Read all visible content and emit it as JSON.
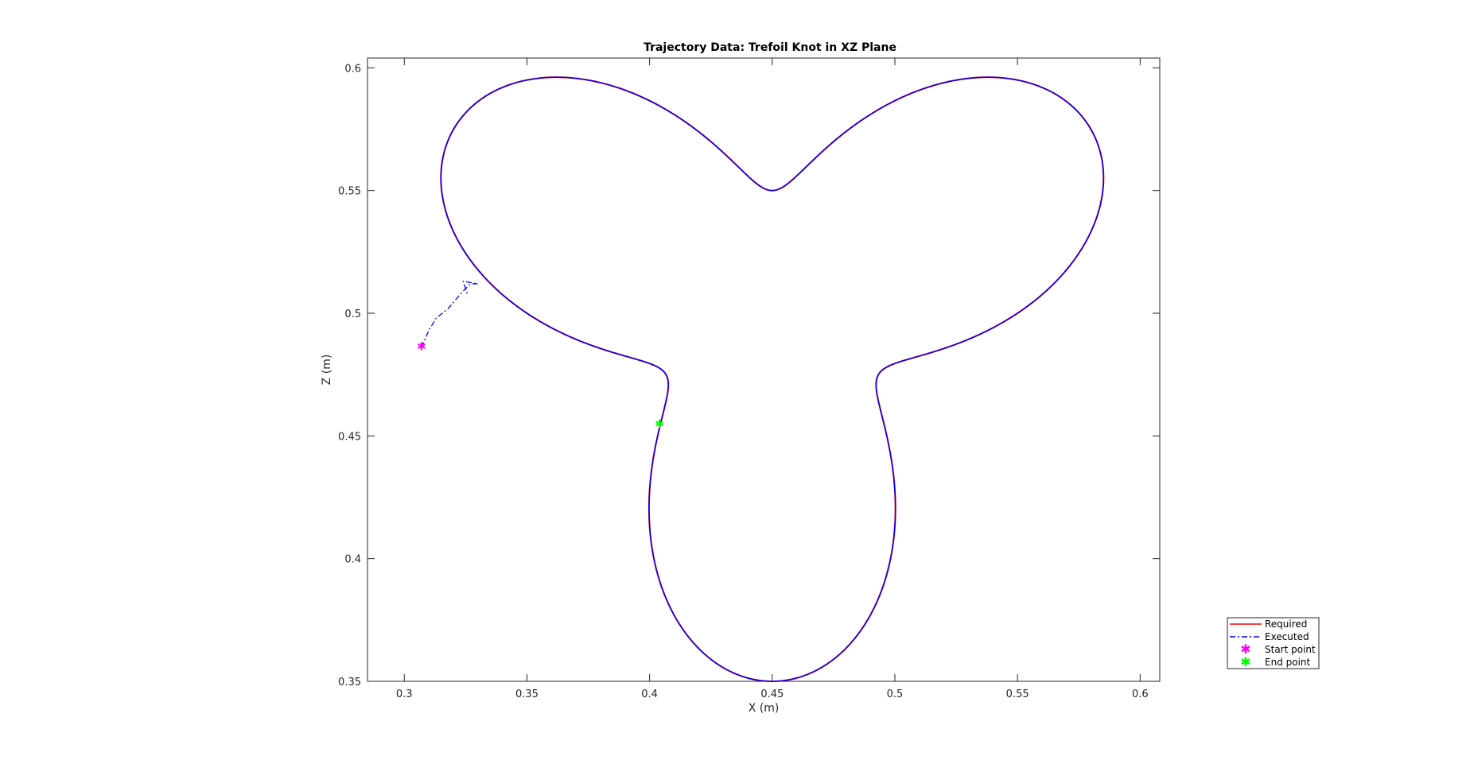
{
  "chart_data": {
    "type": "line",
    "title": "Trajectory Data: Trefoil Knot in XZ Plane",
    "xlabel": "X (m)",
    "ylabel": "Z (m)",
    "xlim": [
      0.285,
      0.608
    ],
    "ylim": [
      0.35,
      0.604
    ],
    "xticks": [
      0.3,
      0.35,
      0.4,
      0.45,
      0.5,
      0.55,
      0.6
    ],
    "xtick_labels": [
      "0.3",
      "0.35",
      "0.4",
      "0.45",
      "0.5",
      "0.55",
      "0.6"
    ],
    "yticks": [
      0.35,
      0.4,
      0.45,
      0.5,
      0.55,
      0.6
    ],
    "ytick_labels": [
      "0.35",
      "0.4",
      "0.45",
      "0.5",
      "0.55",
      "0.6"
    ],
    "grid": false,
    "legend_position": "outside-bottom-right",
    "curve": {
      "description_points": "trefoil knot projection: three lobes",
      "center": [
        0.45,
        0.5
      ],
      "tip_radius": 0.15,
      "inner_radius": 0.05,
      "lobes": 3
    },
    "approach_path": {
      "x": [
        0.307,
        0.31,
        0.313,
        0.318,
        0.323,
        0.327,
        0.33,
        0.324,
        0.326
      ],
      "z": [
        0.486,
        0.493,
        0.498,
        0.502,
        0.508,
        0.512,
        0.512,
        0.513,
        0.507
      ]
    },
    "series": [
      {
        "name": "Required",
        "color": "#ff0000",
        "style": "solid",
        "marker": "none"
      },
      {
        "name": "Executed",
        "color": "#0000ff",
        "style": "dash-dot",
        "marker": "none"
      },
      {
        "name": "Start point",
        "color": "#ff00ff",
        "style": "none",
        "marker": "asterisk",
        "x": 0.307,
        "z": 0.4865
      },
      {
        "name": "End point",
        "color": "#00ff00",
        "style": "none",
        "marker": "asterisk",
        "x": 0.404,
        "z": 0.455
      }
    ]
  }
}
